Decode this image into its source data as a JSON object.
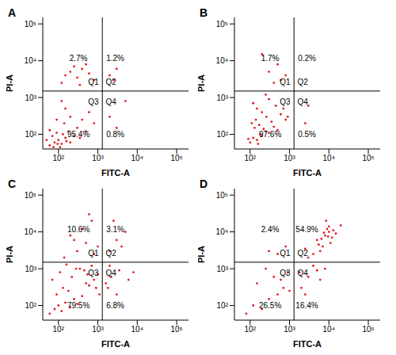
{
  "chart_data": [
    {
      "type": "scatter",
      "panel": "A",
      "x_label": "FITC-A",
      "y_label": "PI-A",
      "log": true,
      "grid": false,
      "color": "#e3191c",
      "marker": "dot",
      "xlim": [
        40,
        200000
      ],
      "ylim": [
        40,
        150000
      ],
      "xticks": [
        {
          "value": 100,
          "label": "10²"
        },
        {
          "value": 1000,
          "label": "10³"
        },
        {
          "value": 10000,
          "label": "10⁴"
        },
        {
          "value": 100000,
          "label": "10⁵"
        }
      ],
      "yticks": [
        {
          "value": 100,
          "label": "10²"
        },
        {
          "value": 1000,
          "label": "10³"
        },
        {
          "value": 10000,
          "label": "10⁴"
        },
        {
          "value": 100000,
          "label": "10⁵"
        }
      ],
      "gates": {
        "x": 1300,
        "y": 1500
      },
      "quadrants": [
        {
          "name": "Q1",
          "value": 2.7,
          "label": "2.7%"
        },
        {
          "name": "Q2",
          "value": 1.2,
          "label": "1.2%"
        },
        {
          "name": "Q3",
          "value": 95.4,
          "label": "95.4%"
        },
        {
          "name": "Q4",
          "value": 0.8,
          "label": "0.8%"
        }
      ],
      "x": [
        60,
        80,
        100,
        120,
        150,
        70,
        90,
        130,
        200,
        180,
        60,
        110,
        250,
        300,
        140,
        90,
        200,
        400,
        500,
        350,
        600,
        150,
        800,
        120,
        50,
        75,
        95,
        160,
        150,
        200,
        300,
        400,
        250,
        600,
        800,
        120,
        500,
        350,
        2000,
        3000,
        2500,
        2000,
        3000,
        5000
      ],
      "y": [
        50,
        60,
        70,
        55,
        80,
        90,
        110,
        100,
        60,
        120,
        130,
        45,
        90,
        150,
        200,
        250,
        300,
        250,
        120,
        80,
        400,
        500,
        200,
        800,
        70,
        45,
        55,
        65,
        4000,
        5000,
        3500,
        6000,
        7000,
        4500,
        3000,
        2500,
        8000,
        2200,
        4000,
        6000,
        3000,
        300,
        150,
        800
      ]
    },
    {
      "type": "scatter",
      "panel": "B",
      "x_label": "FITC-A",
      "y_label": "PI-A",
      "log": true,
      "grid": false,
      "color": "#e3191c",
      "marker": "dot",
      "xlim": [
        40,
        200000
      ],
      "ylim": [
        40,
        150000
      ],
      "xticks": [
        {
          "value": 100,
          "label": "10²"
        },
        {
          "value": 1000,
          "label": "10³"
        },
        {
          "value": 10000,
          "label": "10⁴"
        },
        {
          "value": 100000,
          "label": "10⁵"
        }
      ],
      "yticks": [
        {
          "value": 100,
          "label": "10²"
        },
        {
          "value": 1000,
          "label": "10³"
        },
        {
          "value": 10000,
          "label": "10⁴"
        },
        {
          "value": 100000,
          "label": "10⁵"
        }
      ],
      "gates": {
        "x": 1300,
        "y": 1500
      },
      "quadrants": [
        {
          "name": "Q1",
          "value": 1.7,
          "label": "1.7%"
        },
        {
          "name": "Q2",
          "value": 0.2,
          "label": "0.2%"
        },
        {
          "name": "Q3",
          "value": 97.6,
          "label": "97.6%"
        },
        {
          "name": "Q4",
          "value": 0.5,
          "label": "0.5%"
        }
      ],
      "x": [
        100,
        120,
        150,
        180,
        200,
        250,
        130,
        160,
        220,
        300,
        90,
        110,
        140,
        170,
        260,
        350,
        400,
        500,
        200,
        150,
        600,
        800,
        120,
        300,
        450,
        700,
        900,
        250,
        400,
        600,
        300,
        500,
        800,
        200,
        2500,
        3000
      ],
      "y": [
        60,
        80,
        70,
        100,
        90,
        120,
        150,
        55,
        140,
        110,
        75,
        200,
        250,
        180,
        300,
        220,
        160,
        130,
        400,
        500,
        350,
        250,
        700,
        900,
        600,
        500,
        300,
        1200,
        2500,
        3000,
        5000,
        8000,
        4000,
        15000,
        200,
        600
      ]
    },
    {
      "type": "scatter",
      "panel": "C",
      "x_label": "FITC-A",
      "y_label": "PI-A",
      "log": true,
      "grid": false,
      "color": "#e3191c",
      "marker": "dot",
      "xlim": [
        40,
        200000
      ],
      "ylim": [
        40,
        150000
      ],
      "xticks": [
        {
          "value": 100,
          "label": "10²"
        },
        {
          "value": 1000,
          "label": "10³"
        },
        {
          "value": 10000,
          "label": "10⁴"
        },
        {
          "value": 100000,
          "label": "10⁵"
        }
      ],
      "yticks": [
        {
          "value": 100,
          "label": "10²"
        },
        {
          "value": 1000,
          "label": "10³"
        },
        {
          "value": 10000,
          "label": "10⁴"
        },
        {
          "value": 100000,
          "label": "10⁵"
        }
      ],
      "gates": {
        "x": 1300,
        "y": 1500
      },
      "quadrants": [
        {
          "name": "Q1",
          "value": 10.6,
          "label": "10.6%"
        },
        {
          "name": "Q2",
          "value": 3.1,
          "label": "3.1%"
        },
        {
          "name": "Q3",
          "value": 79.5,
          "label": "79.5%"
        },
        {
          "name": "Q4",
          "value": 6.8,
          "label": "6.8%"
        }
      ],
      "x": [
        60,
        80,
        100,
        120,
        150,
        200,
        250,
        300,
        90,
        130,
        180,
        400,
        500,
        600,
        800,
        1000,
        70,
        110,
        220,
        350,
        450,
        700,
        900,
        1100,
        160,
        280,
        550,
        140,
        300,
        500,
        800,
        1000,
        200,
        400,
        700,
        250,
        600,
        2000,
        3000,
        5000,
        2500,
        4000,
        1800,
        2200,
        3500,
        6000,
        2000,
        3000,
        8000,
        1600
      ],
      "y": [
        60,
        80,
        100,
        70,
        120,
        90,
        150,
        110,
        200,
        300,
        250,
        180,
        400,
        350,
        500,
        700,
        500,
        800,
        600,
        1000,
        900,
        1200,
        300,
        200,
        1300,
        1000,
        700,
        2000,
        3000,
        5000,
        2500,
        4000,
        8000,
        12000,
        20000,
        6000,
        30000,
        3000,
        6000,
        10000,
        20000,
        4000,
        300,
        600,
        900,
        500,
        1200,
        200,
        800,
        400
      ]
    },
    {
      "type": "scatter",
      "panel": "D",
      "x_label": "FITC-A",
      "y_label": "PI-A",
      "log": true,
      "grid": false,
      "color": "#e3191c",
      "marker": "dot",
      "xlim": [
        40,
        200000
      ],
      "ylim": [
        40,
        150000
      ],
      "xticks": [
        {
          "value": 100,
          "label": "10²"
        },
        {
          "value": 1000,
          "label": "10³"
        },
        {
          "value": 10000,
          "label": "10⁴"
        },
        {
          "value": 100000,
          "label": "10⁵"
        }
      ],
      "yticks": [
        {
          "value": 100,
          "label": "10²"
        },
        {
          "value": 1000,
          "label": "10³"
        },
        {
          "value": 10000,
          "label": "10⁴"
        },
        {
          "value": 100000,
          "label": "10⁵"
        }
      ],
      "gates": {
        "x": 1300,
        "y": 1500
      },
      "quadrants": [
        {
          "name": "Q1",
          "value": 2.4,
          "label": "2.4%"
        },
        {
          "name": "Q2",
          "value": 54.9,
          "label": "54.9%"
        },
        {
          "name": "Q3",
          "value": 26.5,
          "label": "26.5%"
        },
        {
          "name": "Q4",
          "value": 16.4,
          "label": "16.4%"
        }
      ],
      "x": [
        5000,
        8000,
        10000,
        12000,
        7000,
        9000,
        15000,
        6000,
        11000,
        4000,
        3000,
        20000,
        8500,
        13000,
        6500,
        2500,
        5500,
        10000,
        7500,
        9500,
        80,
        120,
        200,
        300,
        500,
        700,
        150,
        400,
        900,
        250,
        600,
        1000,
        2000,
        3000,
        5000,
        4000,
        8000,
        2500,
        6000,
        1800,
        500,
        800,
        300
      ],
      "y": [
        6000,
        8000,
        10000,
        7000,
        4000,
        12000,
        9000,
        3000,
        5000,
        2500,
        2000,
        15000,
        20000,
        11000,
        6500,
        3500,
        4500,
        14000,
        9500,
        7500,
        60,
        100,
        80,
        150,
        200,
        300,
        400,
        600,
        800,
        1000,
        500,
        250,
        300,
        600,
        900,
        1200,
        1000,
        200,
        500,
        800,
        2500,
        4000,
        3000
      ]
    }
  ]
}
